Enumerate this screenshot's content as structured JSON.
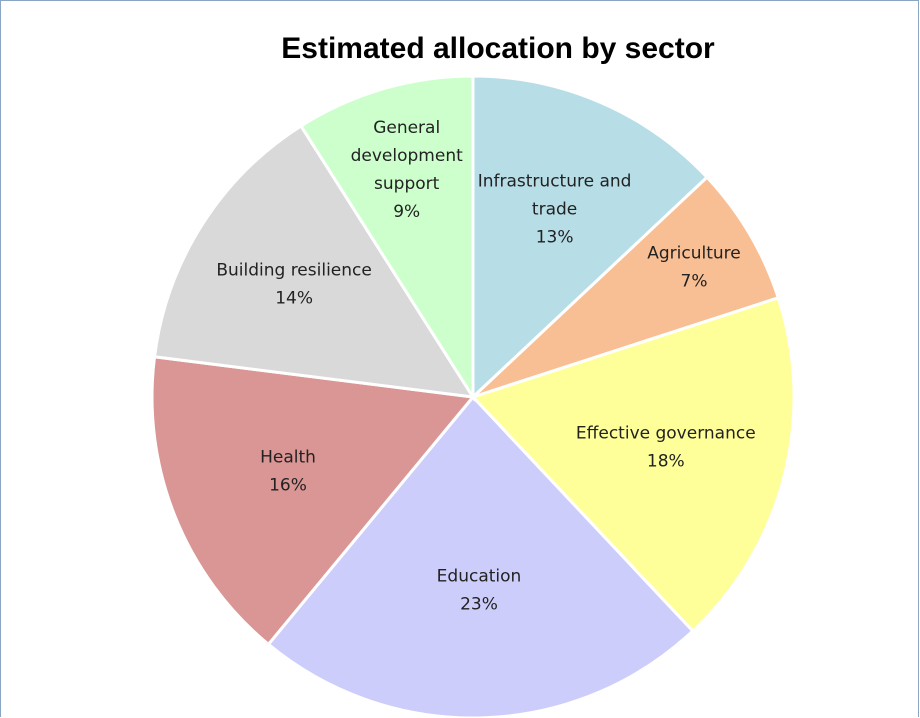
{
  "chart_data": {
    "type": "pie",
    "title": "Estimated allocation by sector",
    "start_direction": "top",
    "direction": "clockwise",
    "slices": [
      {
        "name": [
          "Infrastructure and",
          "trade"
        ],
        "value": 13,
        "label": "13%",
        "color": "#b7dde7"
      },
      {
        "name": [
          "Agriculture"
        ],
        "value": 7,
        "label": "7%",
        "color": "#f9bf94"
      },
      {
        "name": [
          "Effective governance"
        ],
        "value": 18,
        "label": "18%",
        "color": "#ffff99"
      },
      {
        "name": [
          "Education"
        ],
        "value": 23,
        "label": "23%",
        "color": "#cdcdfb"
      },
      {
        "name": [
          "Health"
        ],
        "value": 16,
        "label": "16%",
        "color": "#d99694"
      },
      {
        "name": [
          "Building resilience"
        ],
        "value": 14,
        "label": "14%",
        "color": "#d9d9d9"
      },
      {
        "name": [
          "General",
          "development",
          "support"
        ],
        "value": 9,
        "label": "9%",
        "color": "#ccffcc"
      }
    ]
  }
}
